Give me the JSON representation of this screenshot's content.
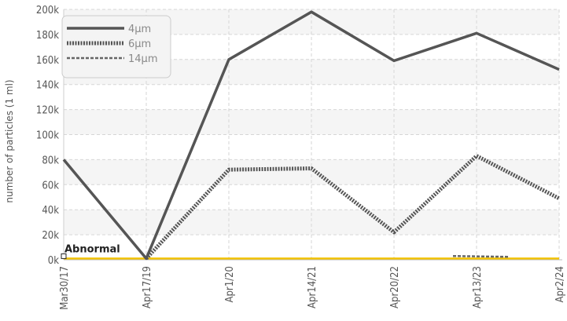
{
  "chart_data": {
    "type": "line",
    "ylabel": "number of particles (1 ml)",
    "xlabel": "",
    "categories": [
      "Mar30/17",
      "Apr17/19",
      "Apr1/20",
      "Apr14/21",
      "Apr20/22",
      "Apr13/23",
      "Apr2/24"
    ],
    "ylim": [
      0,
      200000
    ],
    "yticks": [
      0,
      20000,
      40000,
      60000,
      80000,
      100000,
      120000,
      140000,
      160000,
      180000,
      200000
    ],
    "ytick_labels": [
      "0k",
      "20k",
      "40k",
      "60k",
      "80k",
      "100k",
      "120k",
      "140k",
      "160k",
      "180k",
      "200k"
    ],
    "grid": true,
    "legend_position": "top-left",
    "series": [
      {
        "name": "4µm",
        "values": [
          80000,
          1000,
          160000,
          198000,
          159000,
          181000,
          152000
        ],
        "color": "#555555",
        "style": "solid"
      },
      {
        "name": "6µm",
        "values": [
          null,
          1000,
          72000,
          73000,
          22000,
          83000,
          49000
        ],
        "color": "#555555",
        "style": "dotted"
      },
      {
        "name": "14µm",
        "values": [
          null,
          null,
          null,
          null,
          null,
          3000,
          null
        ],
        "color": "#666666",
        "style": "dashed"
      }
    ],
    "threshold": {
      "label": "Abnormal",
      "value": 1000,
      "color": "#f2c200"
    }
  }
}
